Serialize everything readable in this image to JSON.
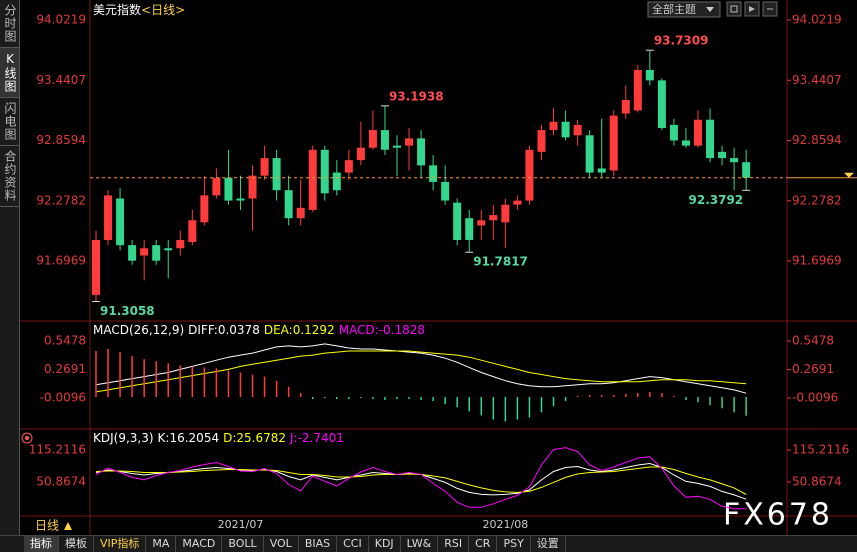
{
  "sidebar": {
    "tabs": [
      "分时图",
      "K线图",
      "闪电图",
      "合约资料"
    ]
  },
  "header": {
    "theme_button": "全部主题"
  },
  "bottom": {
    "period": "日线"
  },
  "toolbar": {
    "items": [
      "指标",
      "模板",
      "VIP指标",
      "MA",
      "MACD",
      "BOLL",
      "VOL",
      "BIAS",
      "CCI",
      "KDJ",
      "LW&",
      "RSI",
      "CR",
      "PSY",
      "设置"
    ]
  },
  "watermark": "FX678",
  "chart_data": [
    {
      "type": "candlestick",
      "title": "美元指数",
      "subtitle": "<日线>",
      "categories": [
        null,
        null,
        null,
        null,
        null,
        null,
        null,
        null,
        null,
        null,
        null,
        null,
        "2021/07",
        null,
        null,
        null,
        null,
        null,
        null,
        null,
        null,
        null,
        null,
        null,
        null,
        null,
        null,
        null,
        null,
        null,
        null,
        null,
        null,
        null,
        "2021/08",
        null,
        null,
        null,
        null,
        null,
        null,
        null,
        null,
        null,
        null,
        null,
        null,
        null,
        null,
        null,
        null,
        null,
        null,
        null,
        null
      ],
      "open": [
        91.37,
        91.9,
        92.3,
        91.85,
        91.75,
        91.85,
        91.82,
        91.82,
        91.88,
        92.07,
        92.33,
        92.5,
        92.3,
        92.3,
        92.52,
        92.69,
        92.38,
        92.11,
        92.19,
        92.77,
        92.55,
        92.55,
        92.67,
        92.79,
        92.96,
        92.81,
        92.81,
        92.88,
        92.62,
        92.46,
        92.26,
        92.11,
        92.04,
        92.09,
        92.07,
        92.24,
        92.28,
        92.75,
        92.96,
        93.04,
        92.91,
        92.91,
        92.59,
        92.57,
        93.12,
        93.15,
        93.54,
        93.44,
        93.01,
        92.86,
        92.81,
        93.06,
        92.75,
        92.69,
        92.65
      ],
      "high": [
        91.99,
        92.38,
        92.4,
        91.9,
        91.9,
        91.9,
        91.9,
        91.99,
        92.19,
        92.52,
        92.59,
        92.77,
        92.52,
        92.62,
        92.81,
        92.77,
        92.52,
        92.48,
        92.81,
        92.81,
        92.67,
        92.77,
        93.04,
        93.15,
        93.1938,
        92.91,
        92.98,
        92.96,
        92.72,
        92.62,
        92.3,
        92.19,
        92.19,
        92.24,
        92.3,
        92.33,
        92.81,
        93.01,
        93.17,
        93.15,
        93.06,
        92.96,
        93.07,
        93.15,
        93.39,
        93.59,
        93.7309,
        93.46,
        93.07,
        92.98,
        93.15,
        93.17,
        92.81,
        92.79,
        92.77
      ],
      "low": [
        91.3058,
        91.85,
        91.8,
        91.66,
        91.51,
        91.66,
        91.53,
        91.75,
        91.85,
        92.04,
        92.3,
        92.24,
        92.19,
        91.99,
        92.48,
        92.28,
        92.04,
        92.04,
        92.17,
        92.28,
        92.33,
        92.48,
        92.62,
        92.77,
        92.72,
        92.52,
        92.57,
        92.5,
        92.38,
        92.24,
        91.85,
        91.7817,
        91.9,
        91.9,
        91.82,
        92.19,
        92.24,
        92.67,
        92.91,
        92.86,
        92.81,
        92.5,
        92.5,
        92.52,
        93.07,
        93.13,
        93.39,
        92.96,
        92.81,
        92.79,
        92.79,
        92.65,
        92.62,
        92.38,
        92.3792
      ],
      "close": [
        91.9,
        92.33,
        91.85,
        91.7,
        91.82,
        91.7,
        91.8,
        91.9,
        92.09,
        92.33,
        92.5,
        92.28,
        92.28,
        92.52,
        92.69,
        92.38,
        92.11,
        92.21,
        92.77,
        92.35,
        92.38,
        92.67,
        92.79,
        92.96,
        92.77,
        92.79,
        92.88,
        92.62,
        92.46,
        92.28,
        91.9,
        91.9,
        92.09,
        92.14,
        92.24,
        92.28,
        92.77,
        92.96,
        93.04,
        92.89,
        93.01,
        92.55,
        92.55,
        93.1,
        93.25,
        93.54,
        93.44,
        92.98,
        92.86,
        92.81,
        93.06,
        92.69,
        92.69,
        92.65,
        92.5
      ],
      "up_color": "#ff3b3b",
      "down_color": "#33d68c",
      "ylim": [
        91.147,
        94.138
      ],
      "yticks": [
        94.0219,
        93.4407,
        92.8594,
        92.2782,
        91.6969
      ]
    },
    {
      "type": "macd",
      "title": "MACD(26,12,9)",
      "series": [
        {
          "name": "DIFF:0.0378",
          "color": "#ffffff",
          "values": [
            0.12,
            0.14,
            0.16,
            0.18,
            0.2,
            0.22,
            0.24,
            0.27,
            0.3,
            0.33,
            0.36,
            0.39,
            0.41,
            0.43,
            0.46,
            0.49,
            0.5,
            0.49,
            0.5,
            0.52,
            0.5,
            0.48,
            0.47,
            0.47,
            0.46,
            0.45,
            0.44,
            0.43,
            0.41,
            0.38,
            0.34,
            0.29,
            0.24,
            0.2,
            0.16,
            0.13,
            0.11,
            0.1,
            0.1,
            0.11,
            0.12,
            0.13,
            0.13,
            0.14,
            0.16,
            0.18,
            0.2,
            0.19,
            0.17,
            0.15,
            0.13,
            0.11,
            0.09,
            0.07,
            0.0378
          ]
        },
        {
          "name": "DEA:0.1292",
          "color": "#ffff00",
          "values": [
            0.05,
            0.07,
            0.09,
            0.11,
            0.13,
            0.15,
            0.17,
            0.19,
            0.21,
            0.23,
            0.25,
            0.27,
            0.3,
            0.32,
            0.34,
            0.36,
            0.38,
            0.4,
            0.41,
            0.43,
            0.44,
            0.45,
            0.45,
            0.45,
            0.45,
            0.45,
            0.45,
            0.44,
            0.43,
            0.42,
            0.41,
            0.39,
            0.36,
            0.33,
            0.3,
            0.27,
            0.24,
            0.22,
            0.2,
            0.18,
            0.17,
            0.16,
            0.15,
            0.15,
            0.15,
            0.15,
            0.16,
            0.17,
            0.17,
            0.17,
            0.16,
            0.16,
            0.15,
            0.14,
            0.1292
          ]
        },
        {
          "name": "MACD:-0.1828",
          "color": "#ff00ff",
          "type": "histogram",
          "up_color": "#ff3b3b",
          "down_color": "#33d68c",
          "values": [
            0.45,
            0.47,
            0.44,
            0.4,
            0.37,
            0.35,
            0.33,
            0.31,
            0.3,
            0.29,
            0.28,
            0.26,
            0.24,
            0.22,
            0.2,
            0.16,
            0.1,
            0.04,
            -0.02,
            -0.01,
            -0.02,
            -0.02,
            -0.01,
            -0.02,
            -0.03,
            -0.02,
            -0.02,
            -0.03,
            -0.04,
            -0.07,
            -0.1,
            -0.14,
            -0.18,
            -0.22,
            -0.24,
            -0.22,
            -0.2,
            -0.15,
            -0.09,
            -0.04,
            0.01,
            0.02,
            0.02,
            0.02,
            0.03,
            0.04,
            0.05,
            0.04,
            0.01,
            -0.03,
            -0.05,
            -0.08,
            -0.11,
            -0.15,
            -0.1828
          ]
        }
      ],
      "ylim": [
        -0.303,
        0.734
      ],
      "yticks": [
        0.5478,
        0.2691,
        -0.0096
      ]
    },
    {
      "type": "kdj",
      "title": "KDJ(9,3,3)",
      "series": [
        {
          "name": "K:16.2054",
          "color": "#ffffff",
          "values": [
            70,
            75,
            72,
            68,
            65,
            68,
            70,
            72,
            75,
            78,
            80,
            78,
            75,
            74,
            76,
            72,
            62,
            55,
            65,
            60,
            55,
            60,
            65,
            70,
            68,
            66,
            68,
            66,
            58,
            50,
            38,
            30,
            26,
            25,
            26,
            28,
            35,
            55,
            72,
            80,
            82,
            75,
            72,
            75,
            80,
            85,
            88,
            80,
            65,
            52,
            48,
            42,
            32,
            25,
            16.2054
          ]
        },
        {
          "name": "D:25.6782",
          "color": "#ffff00",
          "values": [
            72,
            73,
            73,
            72,
            70,
            70,
            70,
            71,
            72,
            74,
            75,
            76,
            76,
            75,
            75,
            74,
            70,
            66,
            66,
            64,
            61,
            61,
            62,
            65,
            66,
            66,
            67,
            66,
            63,
            59,
            52,
            45,
            39,
            34,
            31,
            30,
            32,
            40,
            50,
            60,
            67,
            70,
            71,
            72,
            75,
            78,
            81,
            81,
            76,
            68,
            61,
            55,
            47,
            39,
            25.6782
          ]
        },
        {
          "name": "J:-2.7401",
          "color": "#ff00ff",
          "values": [
            66,
            79,
            70,
            60,
            55,
            64,
            70,
            74,
            81,
            86,
            90,
            82,
            73,
            72,
            78,
            68,
            46,
            33,
            63,
            52,
            43,
            58,
            71,
            80,
            72,
            66,
            70,
            66,
            48,
            32,
            10,
            0,
            0,
            7,
            16,
            24,
            41,
            85,
            116,
            120,
            112,
            85,
            74,
            81,
            90,
            99,
            102,
            78,
            43,
            20,
            22,
            16,
            2,
            -3,
            -2.7401
          ]
        }
      ],
      "ylim": [
        -15.5,
        155.4
      ],
      "yticks": [
        115.2116,
        50.8674
      ]
    }
  ]
}
